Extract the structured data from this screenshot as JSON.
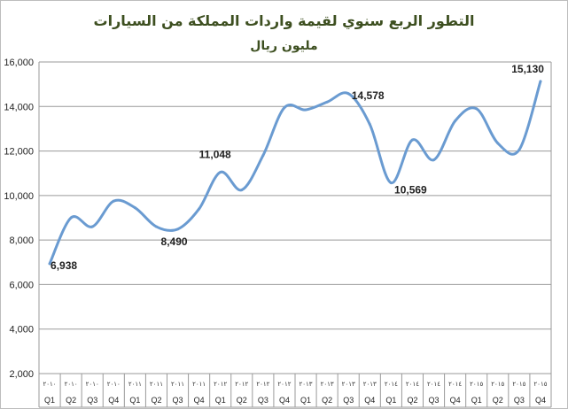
{
  "chart_data": {
    "type": "line",
    "title": "التطور الربع سنوي لقيمة واردات المملكة من السيارات",
    "subtitle": "مليون ريال",
    "xlabel": "",
    "ylabel": "",
    "ylim": [
      2000,
      16000
    ],
    "yticks": [
      2000,
      4000,
      6000,
      8000,
      10000,
      12000,
      14000,
      16000
    ],
    "ytick_labels": [
      "2,000",
      "4,000",
      "6,000",
      "8,000",
      "10,000",
      "12,000",
      "14,000",
      "16,000"
    ],
    "grid": true,
    "legend": "none",
    "line_color": "#6a9bd1",
    "categories": [
      {
        "year": "٢٠١٠",
        "quarter": "Q1"
      },
      {
        "year": "٢٠١٠",
        "quarter": "Q2"
      },
      {
        "year": "٢٠١٠",
        "quarter": "Q3"
      },
      {
        "year": "٢٠١٠",
        "quarter": "Q4"
      },
      {
        "year": "٢٠١١",
        "quarter": "Q1"
      },
      {
        "year": "٢٠١١",
        "quarter": "Q2"
      },
      {
        "year": "٢٠١١",
        "quarter": "Q3"
      },
      {
        "year": "٢٠١١",
        "quarter": "Q4"
      },
      {
        "year": "٢٠١٢",
        "quarter": "Q1"
      },
      {
        "year": "٢٠١٢",
        "quarter": "Q2"
      },
      {
        "year": "٢٠١٢",
        "quarter": "Q3"
      },
      {
        "year": "٢٠١٢",
        "quarter": "Q4"
      },
      {
        "year": "٢٠١٣",
        "quarter": "Q1"
      },
      {
        "year": "٢٠١٣",
        "quarter": "Q2"
      },
      {
        "year": "٢٠١٣",
        "quarter": "Q3"
      },
      {
        "year": "٢٠١٣",
        "quarter": "Q4"
      },
      {
        "year": "٢٠١٤",
        "quarter": "Q1"
      },
      {
        "year": "٢٠١٤",
        "quarter": "Q2"
      },
      {
        "year": "٢٠١٤",
        "quarter": "Q3"
      },
      {
        "year": "٢٠١٤",
        "quarter": "Q4"
      },
      {
        "year": "٢٠١٥",
        "quarter": "Q1"
      },
      {
        "year": "٢٠١٥",
        "quarter": "Q2"
      },
      {
        "year": "٢٠١٥",
        "quarter": "Q3"
      },
      {
        "year": "٢٠١٥",
        "quarter": "Q4"
      }
    ],
    "values": [
      6938,
      9000,
      8600,
      9750,
      9450,
      8600,
      8490,
      9400,
      11048,
      10250,
      11800,
      13950,
      13850,
      14200,
      14578,
      13200,
      10569,
      12500,
      11600,
      13350,
      13900,
      12350,
      12050,
      15130
    ],
    "data_labels": [
      {
        "index": 0,
        "text": "6,938"
      },
      {
        "index": 6,
        "text": "8,490"
      },
      {
        "index": 8,
        "text": "11,048"
      },
      {
        "index": 14,
        "text": "14,578"
      },
      {
        "index": 16,
        "text": "10,569"
      },
      {
        "index": 23,
        "text": "15,130"
      }
    ]
  }
}
